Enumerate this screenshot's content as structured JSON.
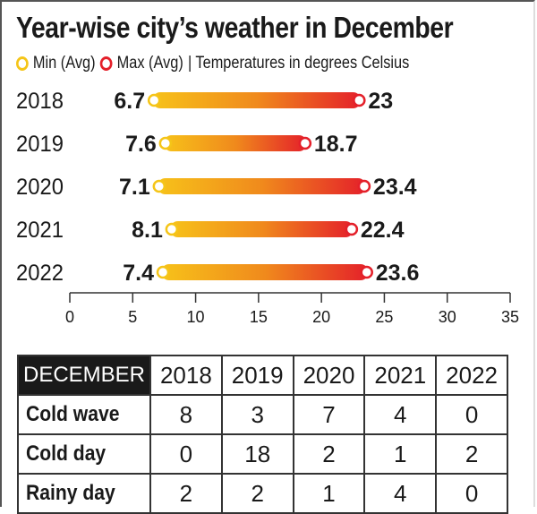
{
  "chart_data": {
    "type": "dumbbell",
    "title": "Year-wise city’s weather in December",
    "legend": {
      "min_label": "Min (Avg)",
      "max_label": "Max (Avg)",
      "note": "| Temperatures in degrees Celsius"
    },
    "categories": [
      "2018",
      "2019",
      "2020",
      "2021",
      "2022"
    ],
    "series": [
      {
        "name": "Min (Avg)",
        "values": [
          6.7,
          7.6,
          7.1,
          8.1,
          7.4
        ],
        "labels": [
          "6.7",
          "7.6",
          "7.1",
          "8.1",
          "7.4"
        ]
      },
      {
        "name": "Max (Avg)",
        "values": [
          23,
          18.7,
          23.4,
          22.4,
          23.6
        ],
        "labels": [
          "23",
          "18.7",
          "23.4",
          "22.4",
          "23.6"
        ]
      }
    ],
    "xlim": [
      0,
      35
    ],
    "xticks": [
      "0",
      "5",
      "10",
      "15",
      "20",
      "25",
      "30",
      "35"
    ],
    "grid": false,
    "legend_placement": "top-left",
    "colors": {
      "min": "#f5c518",
      "max": "#e4202a"
    }
  },
  "table": {
    "corner": "DECEMBER",
    "columns": [
      "2018",
      "2019",
      "2020",
      "2021",
      "2022"
    ],
    "rows": [
      {
        "label": "Cold wave",
        "values": [
          "8",
          "3",
          "7",
          "4",
          "0"
        ]
      },
      {
        "label": "Cold day",
        "values": [
          "0",
          "18",
          "2",
          "1",
          "2"
        ]
      },
      {
        "label": "Rainy day",
        "values": [
          "2",
          "2",
          "1",
          "4",
          "0"
        ]
      }
    ]
  }
}
